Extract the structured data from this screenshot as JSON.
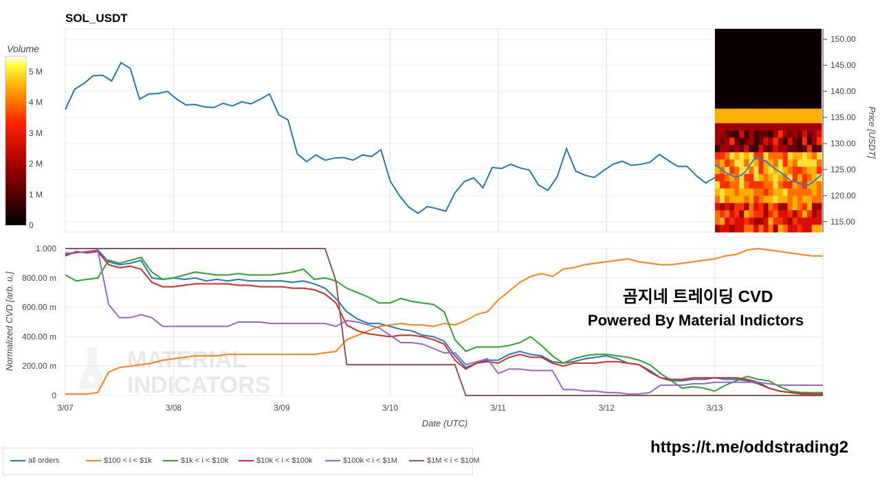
{
  "title": "SOL_USDT",
  "colorbar": {
    "label": "Volume",
    "ticks": [
      "0",
      "1 M",
      "2 M",
      "3 M",
      "4 M",
      "5 M"
    ],
    "max_m": 5.5
  },
  "price_axis": {
    "label": "Price [USDT]",
    "ticks": [
      "115.00",
      "120.00",
      "125.00",
      "130.00",
      "135.00",
      "140.00",
      "145.00",
      "150.00"
    ],
    "range": [
      113.0,
      152.0
    ]
  },
  "date_axis": {
    "label": "Date (UTC)",
    "ticks": [
      "3/07",
      "3/08",
      "3/09",
      "3/10",
      "3/11",
      "3/12",
      "3/13"
    ]
  },
  "cvd_axis": {
    "label": "Normalized CVD [arb. u.]",
    "ticks": [
      "0",
      "200.00 m",
      "400.00 m",
      "600.00 m",
      "800.00 m",
      "1.000"
    ]
  },
  "overlay": {
    "line1": "곰지네 트레이딩 CVD",
    "line2": "Powered By Material Indictors",
    "watermark": [
      "MATERIAL",
      "INDICATORS"
    ]
  },
  "url": "https://t.me/oddstrading2",
  "legend": [
    {
      "label": "all orders",
      "color": "#1f77b4"
    },
    {
      "label": "$100 < i < $1k",
      "color": "#ff7f0e"
    },
    {
      "label": "$1k < i < $10k",
      "color": "#2ca02c"
    },
    {
      "label": "$10k < i < $100k",
      "color": "#d62728"
    },
    {
      "label": "$100k < i < $1M",
      "color": "#9467bd"
    },
    {
      "label": "$1M < i < $10M",
      "color": "#8c564b"
    }
  ],
  "chart_data": [
    {
      "type": "line",
      "title": "SOL_USDT",
      "xlabel": "",
      "ylabel": "Price [USDT]",
      "ylim": [
        113.0,
        152.0
      ],
      "x_days": [
        0,
        0.1,
        0.2,
        0.3,
        0.4,
        0.5,
        0.6,
        0.7,
        0.8,
        0.9,
        1.0,
        1.1,
        1.2,
        1.3,
        1.4,
        1.5,
        1.6,
        1.7,
        1.8,
        1.9,
        2.0,
        2.1,
        2.2,
        2.3,
        2.4,
        2.5,
        2.6,
        2.7,
        2.8,
        2.9,
        3.0,
        3.1,
        3.2,
        3.3,
        3.4,
        3.5,
        3.6,
        3.7,
        3.8,
        3.9,
        4.0,
        4.1,
        4.2,
        4.3,
        4.4,
        4.5,
        4.6,
        4.7,
        4.8,
        4.9,
        5.0,
        5.1,
        5.2,
        5.3,
        5.4,
        5.5,
        5.6,
        5.7,
        5.8,
        5.9,
        6.0,
        6.1,
        6.2,
        6.3,
        6.4,
        6.5,
        6.6,
        6.7,
        6.8,
        6.9,
        7.0
      ],
      "series": [
        {
          "values": [
            136.5,
            140.4,
            141.5,
            143.0,
            143.1,
            142.0,
            145.5,
            144.4,
            138.5,
            139.5,
            139.6,
            140.0,
            138.5,
            137.4,
            137.5,
            137.0,
            136.9,
            137.7,
            137.2,
            138.0,
            137.6,
            138.5,
            139.5,
            135.5,
            134.5,
            128.0,
            126.5,
            127.8,
            126.8,
            127.2,
            127.3,
            126.8,
            127.8,
            127.5,
            128.8,
            122.8,
            120.0,
            117.8,
            116.6,
            117.9,
            117.5,
            117.0,
            120.6,
            122.7,
            123.4,
            121.5,
            125.4,
            125.2,
            126.0,
            125.3,
            124.9,
            122.0,
            121.0,
            123.6,
            129.0,
            124.7,
            123.9,
            123.5,
            124.8,
            126.0,
            126.6,
            125.8,
            126.0,
            126.4,
            127.9,
            126.7,
            125.6,
            125.6,
            123.8,
            122.4,
            123.5
          ]
        }
      ]
    },
    {
      "type": "line",
      "title": "",
      "xlabel": "Date (UTC)",
      "ylabel": "Normalized CVD [arb. u.]",
      "ylim": [
        0,
        1.0
      ],
      "x_days": [
        0,
        0.1,
        0.2,
        0.3,
        0.4,
        0.5,
        0.6,
        0.7,
        0.8,
        0.9,
        1.0,
        1.1,
        1.2,
        1.3,
        1.4,
        1.5,
        1.6,
        1.7,
        1.8,
        1.9,
        2.0,
        2.1,
        2.2,
        2.3,
        2.4,
        2.5,
        2.6,
        2.7,
        2.8,
        2.9,
        3.0,
        3.1,
        3.2,
        3.3,
        3.4,
        3.5,
        3.6,
        3.7,
        3.8,
        3.9,
        4.0,
        4.1,
        4.2,
        4.3,
        4.4,
        4.5,
        4.6,
        4.7,
        4.8,
        4.9,
        5.0,
        5.1,
        5.2,
        5.3,
        5.4,
        5.5,
        5.6,
        5.7,
        5.8,
        5.9,
        6.0,
        6.1,
        6.2,
        6.3,
        6.4,
        6.5,
        6.6,
        6.7,
        6.8,
        6.9,
        7.0
      ],
      "series": [
        {
          "name": "all orders",
          "values": [
            0.96,
            0.97,
            0.98,
            0.99,
            0.91,
            0.89,
            0.9,
            0.92,
            0.8,
            0.79,
            0.8,
            0.79,
            0.8,
            0.78,
            0.79,
            0.78,
            0.79,
            0.78,
            0.78,
            0.78,
            0.78,
            0.77,
            0.78,
            0.76,
            0.73,
            0.66,
            0.57,
            0.52,
            0.49,
            0.49,
            0.47,
            0.45,
            0.44,
            0.41,
            0.4,
            0.37,
            0.27,
            0.19,
            0.22,
            0.24,
            0.24,
            0.28,
            0.3,
            0.28,
            0.27,
            0.23,
            0.22,
            0.23,
            0.25,
            0.26,
            0.27,
            0.25,
            0.22,
            0.21,
            0.17,
            0.12,
            0.1,
            0.1,
            0.11,
            0.11,
            0.12,
            0.11,
            0.11,
            0.1,
            0.08,
            0.05,
            0.03,
            0.02,
            0.02,
            0.01,
            0.01
          ]
        },
        {
          "name": "$100 < i < $1k",
          "values": [
            0.01,
            0.01,
            0.01,
            0.02,
            0.16,
            0.19,
            0.2,
            0.21,
            0.22,
            0.24,
            0.25,
            0.26,
            0.27,
            0.27,
            0.27,
            0.28,
            0.28,
            0.28,
            0.28,
            0.28,
            0.28,
            0.28,
            0.28,
            0.28,
            0.29,
            0.3,
            0.38,
            0.41,
            0.44,
            0.47,
            0.48,
            0.49,
            0.48,
            0.48,
            0.47,
            0.49,
            0.48,
            0.51,
            0.55,
            0.57,
            0.65,
            0.71,
            0.77,
            0.81,
            0.83,
            0.81,
            0.86,
            0.87,
            0.89,
            0.9,
            0.91,
            0.92,
            0.93,
            0.91,
            0.9,
            0.89,
            0.89,
            0.9,
            0.91,
            0.92,
            0.93,
            0.95,
            0.96,
            0.99,
            1.0,
            0.99,
            0.98,
            0.97,
            0.96,
            0.95,
            0.95
          ]
        },
        {
          "name": "$1k < i < $10k",
          "values": [
            0.82,
            0.78,
            0.79,
            0.8,
            0.92,
            0.9,
            0.92,
            0.94,
            0.84,
            0.79,
            0.8,
            0.82,
            0.84,
            0.83,
            0.82,
            0.82,
            0.83,
            0.82,
            0.82,
            0.82,
            0.83,
            0.84,
            0.86,
            0.79,
            0.8,
            0.78,
            0.73,
            0.7,
            0.67,
            0.63,
            0.63,
            0.66,
            0.64,
            0.63,
            0.62,
            0.57,
            0.38,
            0.3,
            0.33,
            0.33,
            0.33,
            0.34,
            0.36,
            0.4,
            0.34,
            0.27,
            0.22,
            0.25,
            0.27,
            0.28,
            0.28,
            0.27,
            0.26,
            0.24,
            0.21,
            0.15,
            0.1,
            0.05,
            0.06,
            0.05,
            0.03,
            0.07,
            0.1,
            0.13,
            0.11,
            0.1,
            0.06,
            0.03,
            0.02,
            0.02,
            0.02
          ]
        },
        {
          "name": "$10k < i < $100k",
          "values": [
            0.95,
            0.98,
            0.97,
            0.98,
            0.89,
            0.87,
            0.88,
            0.86,
            0.77,
            0.74,
            0.74,
            0.75,
            0.76,
            0.76,
            0.76,
            0.76,
            0.75,
            0.75,
            0.74,
            0.74,
            0.74,
            0.73,
            0.73,
            0.72,
            0.69,
            0.63,
            0.48,
            0.44,
            0.42,
            0.41,
            0.4,
            0.41,
            0.41,
            0.4,
            0.38,
            0.35,
            0.24,
            0.18,
            0.22,
            0.23,
            0.22,
            0.26,
            0.28,
            0.26,
            0.26,
            0.22,
            0.2,
            0.22,
            0.22,
            0.22,
            0.23,
            0.23,
            0.22,
            0.21,
            0.16,
            0.12,
            0.11,
            0.11,
            0.12,
            0.12,
            0.12,
            0.12,
            0.12,
            0.11,
            0.09,
            0.05,
            0.03,
            0.02,
            0.01,
            0.01,
            0.01
          ]
        },
        {
          "name": "$100k < i < $1M",
          "values": [
            0.97,
            0.97,
            0.98,
            0.99,
            0.62,
            0.53,
            0.53,
            0.55,
            0.53,
            0.47,
            0.47,
            0.47,
            0.47,
            0.47,
            0.47,
            0.47,
            0.5,
            0.5,
            0.5,
            0.49,
            0.49,
            0.49,
            0.49,
            0.49,
            0.49,
            0.47,
            0.51,
            0.5,
            0.48,
            0.46,
            0.41,
            0.36,
            0.36,
            0.35,
            0.32,
            0.29,
            0.29,
            0.21,
            0.23,
            0.25,
            0.15,
            0.18,
            0.18,
            0.17,
            0.17,
            0.17,
            0.04,
            0.04,
            0.03,
            0.03,
            0.02,
            0.02,
            0.01,
            0.01,
            0.02,
            0.07,
            0.07,
            0.07,
            0.08,
            0.08,
            0.09,
            0.09,
            0.09,
            0.09,
            0.09,
            0.08,
            0.07,
            0.07,
            0.07,
            0.07,
            0.07
          ]
        },
        {
          "name": "$1M < i < $10M",
          "values": [
            1.0,
            1.0,
            1.0,
            1.0,
            1.0,
            1.0,
            1.0,
            1.0,
            1.0,
            1.0,
            1.0,
            1.0,
            1.0,
            1.0,
            1.0,
            1.0,
            1.0,
            1.0,
            1.0,
            1.0,
            1.0,
            1.0,
            1.0,
            1.0,
            1.0,
            0.78,
            0.21,
            0.21,
            0.21,
            0.21,
            0.21,
            0.21,
            0.21,
            0.21,
            0.21,
            0.21,
            0.21,
            0.0,
            0.0,
            0.0,
            0.0,
            0.0,
            0.0,
            0.0,
            0.0,
            0.0,
            0.0,
            0.0,
            0.0,
            0.0,
            0.0,
            0.0,
            0.0,
            0.0,
            0.0,
            0.0,
            0.0,
            0.0,
            0.0,
            0.0,
            0.0,
            0.0,
            0.0,
            0.0,
            0.0,
            0.0,
            0.0,
            0.0,
            0.0,
            0.0,
            0.0
          ]
        }
      ]
    }
  ]
}
